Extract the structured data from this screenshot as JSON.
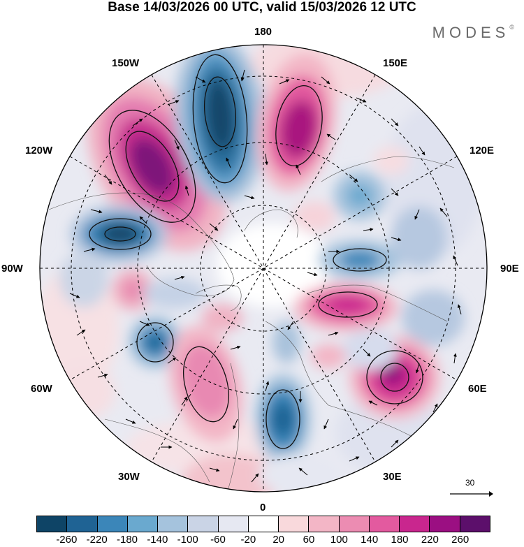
{
  "title": "Base 14/03/2026 00 UTC, valid 15/03/2026 12 UTC",
  "brand": "MODES",
  "brand_mark": "©",
  "longitude_labels": {
    "top": "180",
    "bottom": "0",
    "left": "90W",
    "right": "90E",
    "upper_left": "150W",
    "upper_right": "150E",
    "mid_upper_left": "120W",
    "mid_upper_right": "120E",
    "mid_lower_left": "60W",
    "mid_lower_right": "60E",
    "lower_left": "30W",
    "lower_right": "30E"
  },
  "reference_vector": {
    "label": "30"
  },
  "colorbar": {
    "colors": [
      "#0e4466",
      "#1f6394",
      "#3b86b9",
      "#6aa9cf",
      "#a5c3dd",
      "#cad4e6",
      "#e6e8f2",
      "#ffffff",
      "#f9d9dc",
      "#f3b6c6",
      "#ec8cb2",
      "#e35a9f",
      "#c9268e",
      "#9b0f82",
      "#5c0f6b"
    ],
    "tick_labels": [
      "-260",
      "-220",
      "-180",
      "-140",
      "-100",
      "-60",
      "-20",
      "20",
      "60",
      "100",
      "140",
      "180",
      "220",
      "260"
    ]
  }
}
